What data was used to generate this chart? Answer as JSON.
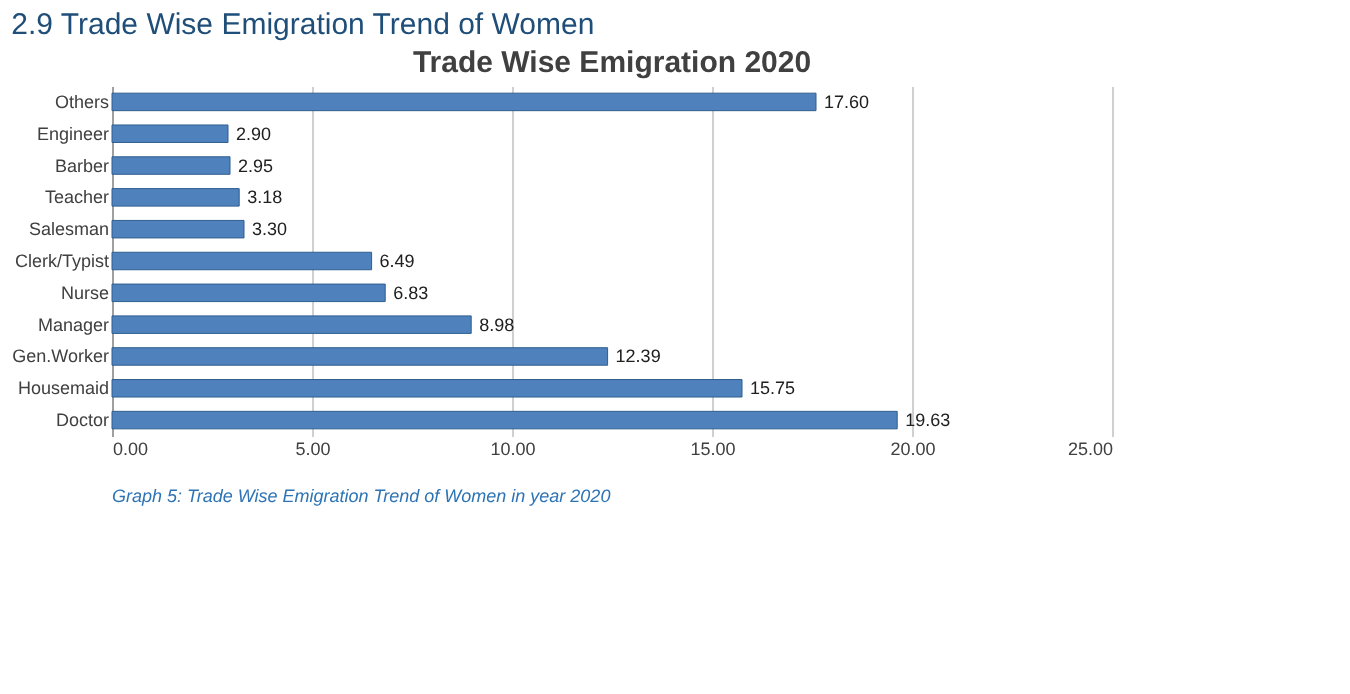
{
  "chart_data": {
    "type": "bar",
    "orientation": "horizontal",
    "title": "2.9 Trade Wise Emigration Trend of Women",
    "subtitle": "Trade Wise Emigration 2020",
    "categories": [
      "Others",
      "Engineer",
      "Barber",
      "Teacher",
      "Salesman",
      "Clerk/Typist",
      "Nurse",
      "Manager",
      "Gen.Worker",
      "Housemaid",
      "Doctor"
    ],
    "values": [
      17.6,
      2.9,
      2.95,
      3.18,
      3.3,
      6.49,
      6.83,
      8.98,
      12.39,
      15.75,
      19.63
    ],
    "value_labels": [
      "17.60",
      "2.90",
      "2.95",
      "3.18",
      "3.30",
      "6.49",
      "6.83",
      "8.98",
      "12.39",
      "15.75",
      "19.63"
    ],
    "color": "#4f81bd",
    "xlim": [
      0,
      25
    ],
    "xticks": [
      {
        "value": 0,
        "label": "0.00"
      },
      {
        "value": 5,
        "label": "5.00"
      },
      {
        "value": 10,
        "label": "10.00"
      },
      {
        "value": 15,
        "label": "15.00"
      },
      {
        "value": 20,
        "label": "20.00"
      },
      {
        "value": 25,
        "label": "25.00"
      }
    ],
    "grid": "x",
    "annotations": [
      "Graph 5: Trade Wise Emigration Trend of Women in year 2020"
    ]
  }
}
